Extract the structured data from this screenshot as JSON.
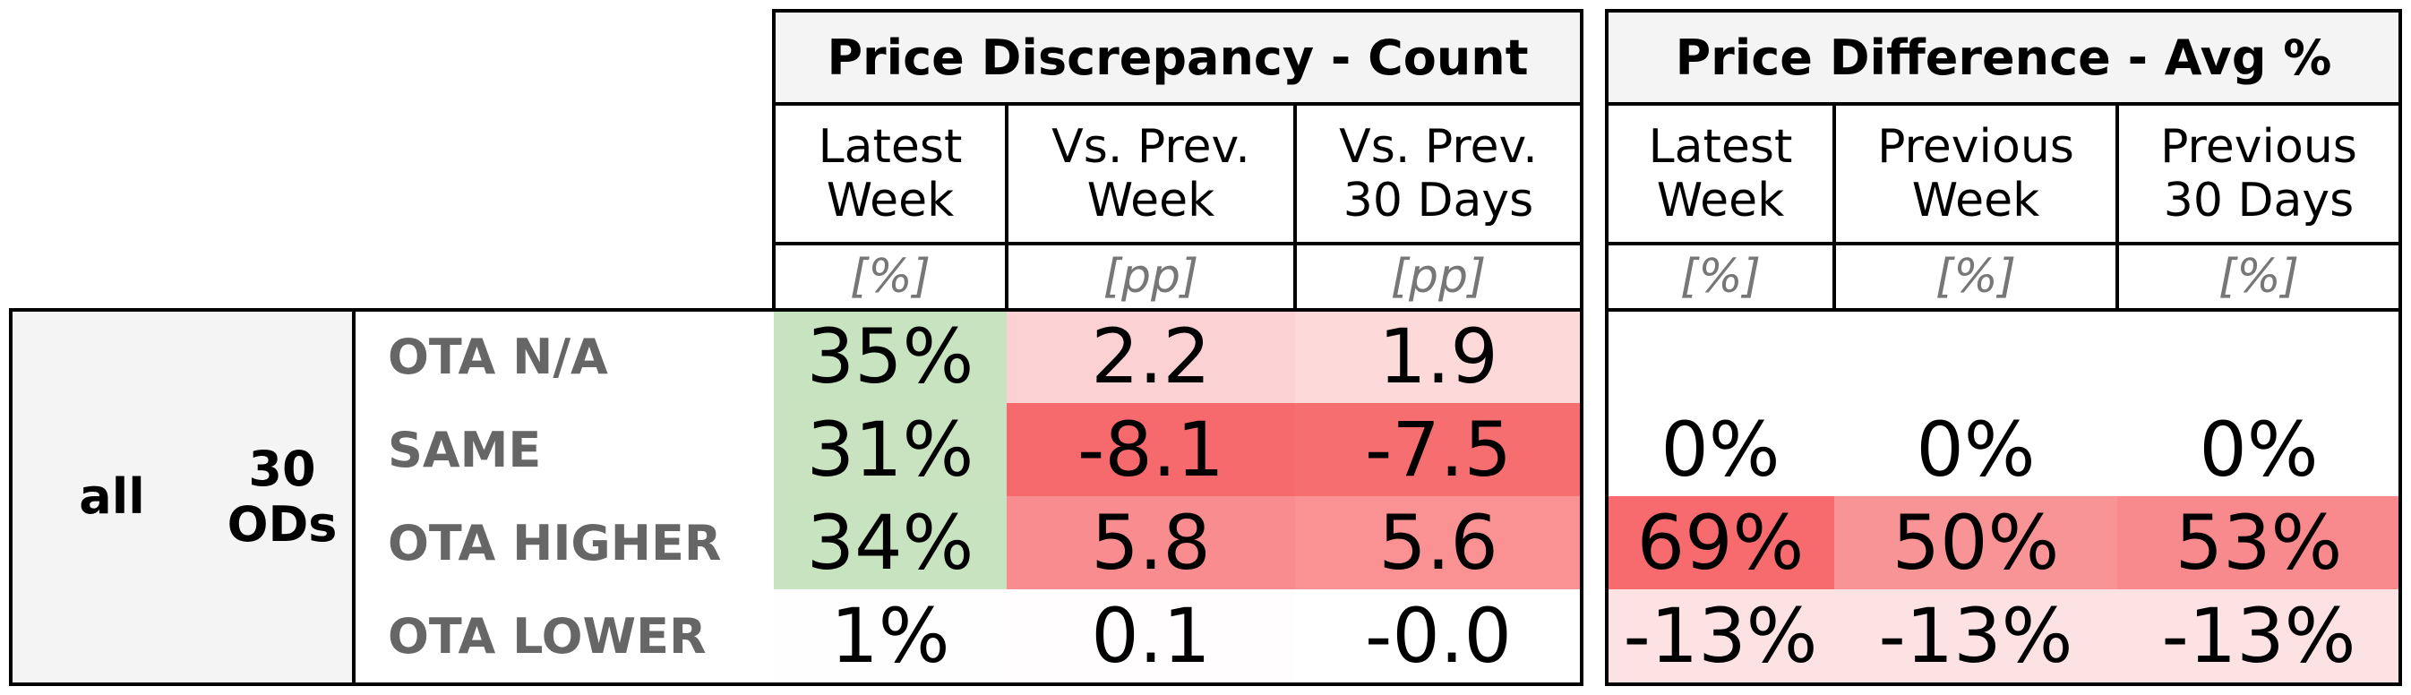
{
  "chart_data": {
    "type": "table",
    "groups": [
      {
        "title": "Price Discrepancy - Count",
        "columns": [
          {
            "header": "Latest\nWeek",
            "unit": "[%]"
          },
          {
            "header": "Vs. Prev.\nWeek",
            "unit": "[pp]"
          },
          {
            "header": "Vs. Prev.\n30 Days",
            "unit": "[pp]"
          }
        ]
      },
      {
        "title": "Price Difference - Avg %",
        "columns": [
          {
            "header": "Latest\nWeek",
            "unit": "[%]"
          },
          {
            "header": "Previous\nWeek",
            "unit": "[%]"
          },
          {
            "header": "Previous\n30 Days",
            "unit": "[%]"
          }
        ]
      }
    ],
    "segment": "all",
    "subsegment": "30\nODs",
    "rows": [
      {
        "label": "OTA N/A",
        "count": [
          "35%",
          "2.2",
          "1.9"
        ],
        "count_colors": [
          "#c8e3bf",
          "#fcd1d3",
          "#fdd9da"
        ],
        "avg": [
          "",
          "",
          ""
        ],
        "avg_colors": [
          "#ffffff",
          "#ffffff",
          "#ffffff"
        ]
      },
      {
        "label": "SAME",
        "count": [
          "31%",
          "-8.1",
          "-7.5"
        ],
        "count_colors": [
          "#c9e3c0",
          "#f66a6d",
          "#f76e71"
        ],
        "avg": [
          "0%",
          "0%",
          "0%"
        ],
        "avg_colors": [
          "#ffffff",
          "#ffffff",
          "#ffffff"
        ]
      },
      {
        "label": "OTA HIGHER",
        "count": [
          "34%",
          "5.8",
          "5.6"
        ],
        "count_colors": [
          "#c8e3bf",
          "#f98c8f",
          "#fa9193"
        ],
        "avg": [
          "69%",
          "50%",
          "53%"
        ],
        "avg_colors": [
          "#f76a6d",
          "#f99496",
          "#f8898c"
        ]
      },
      {
        "label": "OTA LOWER",
        "count": [
          "1%",
          "0.1",
          "-0.0"
        ],
        "count_colors": [
          "#fefefe",
          "#fffdfd",
          "#ffffff"
        ],
        "avg": [
          "-13%",
          "-13%",
          "-13%"
        ],
        "avg_colors": [
          "#fde2e3",
          "#fde2e3",
          "#fde2e3"
        ]
      }
    ]
  }
}
